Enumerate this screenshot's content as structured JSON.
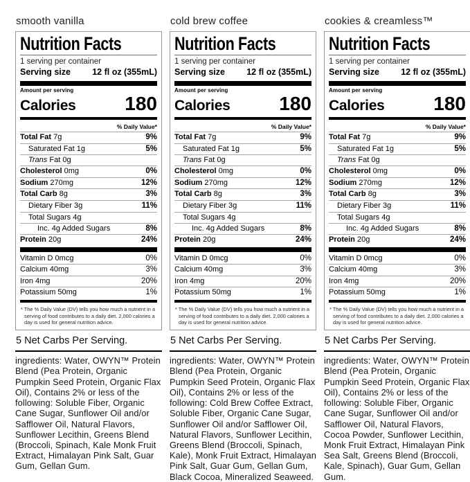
{
  "products": [
    {
      "title": "smooth vanilla",
      "ingredients": "ingredients: Water, OWYN™ Protein Blend (Pea Protein, Organic Pumpkin Seed Protein, Organic Flax Oil), Contains 2% or less of the following: Soluble Fiber, Organic Cane Sugar, Sunflower Oil and/or Safflower Oil, Natural Flavors, Sunflower Lecithin, Greens Blend (Broccoli, Spinach, Kale Monk Fruit Extract, Himalayan Pink Salt, Guar Gum, Gellan Gum."
    },
    {
      "title": "cold brew coffee",
      "ingredients": "ingredients: Water, OWYN™ Protein Blend (Pea Protein, Organic Pumpkin Seed Protein, Organic Flax Oil), Contains 2% or less of the following: Cold Brew Coffee Extract, Soluble Fiber, Organic Cane Sugar, Sunflower Oil and/or Safflower Oil, Natural Flavors, Sunflower Lecithin, Greens Blend (Broccoli, Spinach, Kale), Monk Fruit Extract, Himalayan Pink Salt, Guar Gum, Gellan Gum, Black Cocoa, Mineralized Seaweed."
    },
    {
      "title": "cookies & creamless™",
      "ingredients": "ingredients: Water, OWYN™ Protein Blend (Pea Protein, Organic Pumpkin Seed Protein, Organic Flax Oil), Contains 2% or less of the following: Soluble Fiber, Organic Cane Sugar, Sunflower Oil and/or Safflower Oil, Natural Flavors, Cocoa Powder, Sunflower Lecithin, Monk Fruit Extract, Himalayan Pink Sea Salt, Greens Blend (Broccoli, Kale, Spinach), Guar Gum, Gellan Gum."
    }
  ],
  "label": {
    "heading": "Nutrition Facts",
    "servings_per_container": "1 serving per container",
    "serving_size_label": "Serving size",
    "serving_size_value": "12 fl oz (355mL)",
    "amount_per_serving": "Amount per serving",
    "calories_label": "Calories",
    "calories_value": "180",
    "daily_value_header": "% Daily Value*",
    "rows": [
      {
        "name": "Total Fat",
        "amount": "7g",
        "dv": "9%"
      },
      {
        "name": "Saturated Fat",
        "amount": "1g",
        "dv": "5%"
      },
      {
        "name_italic": "Trans",
        "rest": "Fat 0g",
        "dv": ""
      },
      {
        "name": "Cholesterol",
        "amount": "0mg",
        "dv": "0%"
      },
      {
        "name": "Sodium",
        "amount": "270mg",
        "dv": "12%"
      },
      {
        "name": "Total Carb",
        "amount": "8g",
        "dv": "3%"
      },
      {
        "name": "Dietary Fiber",
        "amount": "3g",
        "dv": "11%"
      },
      {
        "name": "Total Sugars",
        "amount": "4g",
        "dv": ""
      },
      {
        "name": "Inc. 4g Added Sugars",
        "dv": "8%"
      },
      {
        "name": "Protein",
        "amount": "20g",
        "dv": "24%"
      }
    ],
    "micros": [
      {
        "name": "Vitamin D 0mcg",
        "dv": "0%"
      },
      {
        "name": "Calcium 40mg",
        "dv": "3%"
      },
      {
        "name": "Iron 4mg",
        "dv": "20%"
      },
      {
        "name": "Potassium 50mg",
        "dv": "1%"
      }
    ],
    "footnote": "* The % Daily Value (DV) tells you how much a nutrient in a serving of food contributes to a daily diet. 2,000 calories a day is used for general nutrition advice.",
    "net_carbs": "5 Net Carbs Per Serving."
  },
  "colors": {
    "bar": "#000000",
    "box_border": "#979797",
    "hairline": "#a6a6a6"
  }
}
